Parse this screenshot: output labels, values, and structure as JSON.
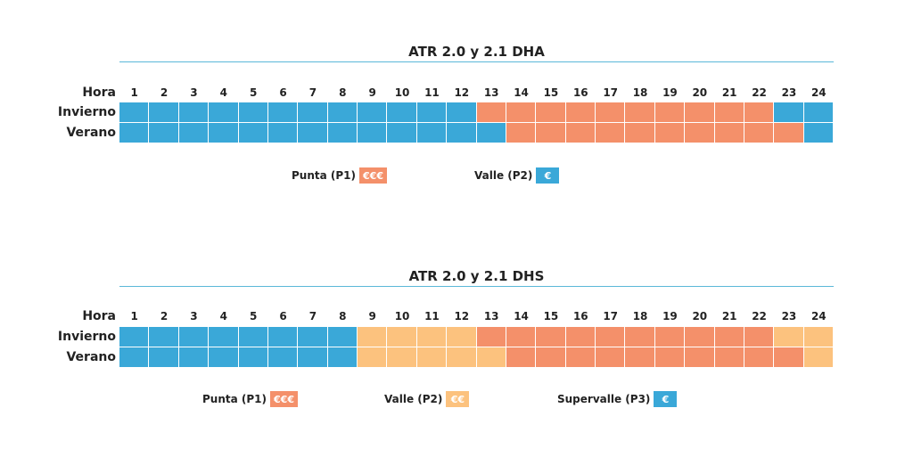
{
  "colors": {
    "punta": "#f4906a",
    "valle_dha": "#3aa8d8",
    "valle_dhs": "#fcc27e",
    "supervalle": "#3aa8d8"
  },
  "chart_data": [
    {
      "type": "heatmap",
      "title": "ATR 2.0 y 2.1 DHA",
      "hours_label": "Hora",
      "hours": [
        "1",
        "2",
        "3",
        "4",
        "5",
        "6",
        "7",
        "8",
        "9",
        "10",
        "11",
        "12",
        "13",
        "14",
        "15",
        "16",
        "17",
        "18",
        "19",
        "20",
        "21",
        "22",
        "23",
        "24"
      ],
      "rows": [
        {
          "name": "Invierno",
          "periods": [
            "P2",
            "P2",
            "P2",
            "P2",
            "P2",
            "P2",
            "P2",
            "P2",
            "P2",
            "P2",
            "P2",
            "P2",
            "P1",
            "P1",
            "P1",
            "P1",
            "P1",
            "P1",
            "P1",
            "P1",
            "P1",
            "P1",
            "P2",
            "P2"
          ]
        },
        {
          "name": "Verano",
          "periods": [
            "P2",
            "P2",
            "P2",
            "P2",
            "P2",
            "P2",
            "P2",
            "P2",
            "P2",
            "P2",
            "P2",
            "P2",
            "P2",
            "P1",
            "P1",
            "P1",
            "P1",
            "P1",
            "P1",
            "P1",
            "P1",
            "P1",
            "P1",
            "P2"
          ]
        }
      ],
      "legend": [
        {
          "key": "P1",
          "label": "Punta (P1)",
          "symbol": "€€€",
          "color": "#f4906a"
        },
        {
          "key": "P2",
          "label": "Valle (P2)",
          "symbol": "€",
          "color": "#3aa8d8"
        }
      ]
    },
    {
      "type": "heatmap",
      "title": "ATR 2.0 y 2.1 DHS",
      "hours_label": "Hora",
      "hours": [
        "1",
        "2",
        "3",
        "4",
        "5",
        "6",
        "7",
        "8",
        "9",
        "10",
        "11",
        "12",
        "13",
        "14",
        "15",
        "16",
        "17",
        "18",
        "19",
        "20",
        "21",
        "22",
        "23",
        "24"
      ],
      "rows": [
        {
          "name": "Invierno",
          "periods": [
            "P3",
            "P3",
            "P3",
            "P3",
            "P3",
            "P3",
            "P3",
            "P3",
            "P2",
            "P2",
            "P2",
            "P2",
            "P1",
            "P1",
            "P1",
            "P1",
            "P1",
            "P1",
            "P1",
            "P1",
            "P1",
            "P1",
            "P2",
            "P2"
          ]
        },
        {
          "name": "Verano",
          "periods": [
            "P3",
            "P3",
            "P3",
            "P3",
            "P3",
            "P3",
            "P3",
            "P3",
            "P2",
            "P2",
            "P2",
            "P2",
            "P2",
            "P1",
            "P1",
            "P1",
            "P1",
            "P1",
            "P1",
            "P1",
            "P1",
            "P1",
            "P1",
            "P2"
          ]
        }
      ],
      "legend": [
        {
          "key": "P1",
          "label": "Punta (P1)",
          "symbol": "€€€",
          "color": "#f4906a"
        },
        {
          "key": "P2",
          "label": "Valle (P2)",
          "symbol": "€€",
          "color": "#fcc27e"
        },
        {
          "key": "P3",
          "label": "Supervalle (P3)",
          "symbol": "€",
          "color": "#3aa8d8"
        }
      ]
    }
  ]
}
